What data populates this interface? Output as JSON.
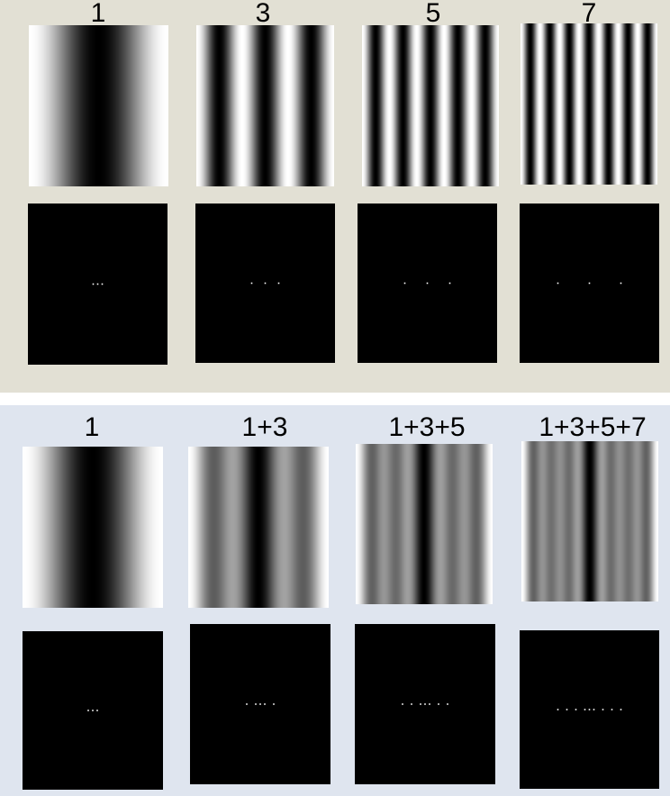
{
  "top_panel": {
    "labels": [
      "1",
      "3",
      "5",
      "7"
    ],
    "harmonics": [
      [
        1
      ],
      [
        3
      ],
      [
        5
      ],
      [
        7
      ]
    ],
    "spectrum_dots": [
      [
        -1,
        1
      ],
      [
        -3,
        3
      ],
      [
        -5,
        5
      ],
      [
        -7,
        7
      ]
    ]
  },
  "bottom_panel": {
    "labels": [
      "1",
      "1+3",
      "1+3+5",
      "1+3+5+7"
    ],
    "harmonics": [
      [
        1
      ],
      [
        1,
        3
      ],
      [
        1,
        3,
        5
      ],
      [
        1,
        3,
        5,
        7
      ]
    ],
    "spectrum_dots": [
      [
        -1,
        1
      ],
      [
        -3,
        -1,
        1,
        3
      ],
      [
        -5,
        -3,
        -1,
        1,
        3,
        5
      ],
      [
        -7,
        -5,
        -3,
        -1,
        1,
        3,
        5,
        7
      ]
    ]
  },
  "colors": {
    "top_background": "#e2e0d4",
    "bottom_background": "#dfe5ef",
    "divider": "#ffffff",
    "spectrum_background": "#000000",
    "dot": "#ffffff"
  }
}
